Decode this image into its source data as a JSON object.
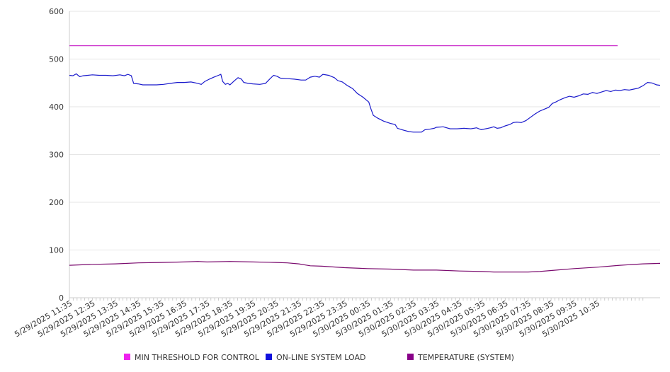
{
  "chart_data": {
    "type": "line",
    "title": "",
    "xlabel": "",
    "ylabel": "",
    "ylim": [
      0,
      600
    ],
    "yticks": [
      0,
      100,
      200,
      300,
      400,
      500,
      600
    ],
    "grid": true,
    "legend_position": "bottom",
    "xticks": [
      "5/29/2025 11:35",
      "5/29/2025 12:35",
      "5/29/2025 13:35",
      "5/29/2025 14:35",
      "5/29/2025 15:35",
      "5/29/2025 16:35",
      "5/29/2025 17:35",
      "5/29/2025 18:35",
      "5/29/2025 19:35",
      "5/29/2025 20:35",
      "5/29/2025 21:35",
      "5/29/2025 22:35",
      "5/29/2025 23:35",
      "5/30/2025 00:35",
      "5/30/2025 01:35",
      "5/30/2025 02:35",
      "5/30/2025 03:35",
      "5/30/2025 04:35",
      "5/30/2025 05:35",
      "5/30/2025 06:35",
      "5/30/2025 07:35",
      "5/30/2025 08:35",
      "5/30/2025 09:35",
      "5/30/2025 10:35"
    ],
    "x_hours_note_free": true,
    "series": [
      {
        "name": "MIN THRESHOLD FOR CONTROL",
        "color": "#cc33cc",
        "legend_color": "#ee22ee",
        "points": [
          [
            0,
            528
          ],
          [
            23.9,
            528
          ]
        ]
      },
      {
        "name": "ON-LINE SYSTEM LOAD",
        "color": "#1a1acc",
        "legend_color": "#1111dd",
        "points": [
          [
            0,
            466
          ],
          [
            0.15,
            465
          ],
          [
            0.3,
            469
          ],
          [
            0.45,
            463
          ],
          [
            0.6,
            465
          ],
          [
            0.8,
            466
          ],
          [
            1.0,
            467
          ],
          [
            1.3,
            466
          ],
          [
            1.6,
            466
          ],
          [
            1.9,
            465
          ],
          [
            2.2,
            467
          ],
          [
            2.4,
            465
          ],
          [
            2.55,
            468
          ],
          [
            2.7,
            465
          ],
          [
            2.8,
            449
          ],
          [
            3.0,
            448
          ],
          [
            3.2,
            446
          ],
          [
            3.5,
            446
          ],
          [
            3.8,
            446
          ],
          [
            4.1,
            447
          ],
          [
            4.4,
            449
          ],
          [
            4.7,
            451
          ],
          [
            5.0,
            451
          ],
          [
            5.3,
            452
          ],
          [
            5.6,
            449
          ],
          [
            5.75,
            447
          ],
          [
            5.9,
            453
          ],
          [
            6.1,
            458
          ],
          [
            6.3,
            462
          ],
          [
            6.5,
            466
          ],
          [
            6.6,
            468
          ],
          [
            6.68,
            453
          ],
          [
            6.8,
            447
          ],
          [
            6.9,
            449
          ],
          [
            7.0,
            446
          ],
          [
            7.2,
            455
          ],
          [
            7.35,
            461
          ],
          [
            7.5,
            458
          ],
          [
            7.6,
            451
          ],
          [
            7.8,
            449
          ],
          [
            8.0,
            448
          ],
          [
            8.3,
            447
          ],
          [
            8.55,
            449
          ],
          [
            8.75,
            459
          ],
          [
            8.9,
            466
          ],
          [
            9.05,
            464
          ],
          [
            9.2,
            460
          ],
          [
            9.5,
            459
          ],
          [
            9.8,
            458
          ],
          [
            10.1,
            456
          ],
          [
            10.3,
            456
          ],
          [
            10.5,
            462
          ],
          [
            10.7,
            464
          ],
          [
            10.9,
            462
          ],
          [
            11.05,
            468
          ],
          [
            11.3,
            466
          ],
          [
            11.55,
            461
          ],
          [
            11.7,
            455
          ],
          [
            11.9,
            452
          ],
          [
            12.1,
            445
          ],
          [
            12.35,
            438
          ],
          [
            12.55,
            428
          ],
          [
            12.8,
            420
          ],
          [
            13.05,
            410
          ],
          [
            13.15,
            395
          ],
          [
            13.25,
            382
          ],
          [
            13.45,
            376
          ],
          [
            13.7,
            370
          ],
          [
            14.0,
            365
          ],
          [
            14.2,
            363
          ],
          [
            14.3,
            355
          ],
          [
            14.5,
            352
          ],
          [
            14.8,
            348
          ],
          [
            15.0,
            347
          ],
          [
            15.35,
            347
          ],
          [
            15.5,
            352
          ],
          [
            15.7,
            353
          ],
          [
            15.9,
            355
          ],
          [
            16.0,
            357
          ],
          [
            16.3,
            358
          ],
          [
            16.6,
            354
          ],
          [
            16.9,
            354
          ],
          [
            17.2,
            355
          ],
          [
            17.5,
            354
          ],
          [
            17.75,
            356
          ],
          [
            17.95,
            352
          ],
          [
            18.15,
            354
          ],
          [
            18.35,
            356
          ],
          [
            18.5,
            358
          ],
          [
            18.65,
            355
          ],
          [
            18.8,
            356
          ],
          [
            19.0,
            360
          ],
          [
            19.2,
            363
          ],
          [
            19.35,
            367
          ],
          [
            19.5,
            368
          ],
          [
            19.7,
            367
          ],
          [
            19.9,
            371
          ],
          [
            20.1,
            378
          ],
          [
            20.3,
            385
          ],
          [
            20.5,
            391
          ],
          [
            20.7,
            395
          ],
          [
            20.9,
            399
          ],
          [
            21.05,
            407
          ],
          [
            21.2,
            410
          ],
          [
            21.4,
            415
          ],
          [
            21.6,
            419
          ],
          [
            21.8,
            422
          ],
          [
            22.0,
            420
          ],
          [
            22.2,
            423
          ],
          [
            22.4,
            427
          ],
          [
            22.6,
            426
          ],
          [
            22.8,
            430
          ],
          [
            23.0,
            428
          ],
          [
            23.2,
            431
          ],
          [
            23.4,
            434
          ],
          [
            23.6,
            432
          ],
          [
            23.8,
            435
          ],
          [
            24.0,
            434
          ],
          [
            24.2,
            436
          ],
          [
            24.4,
            435
          ],
          [
            24.6,
            437
          ],
          [
            24.8,
            439
          ],
          [
            25.0,
            444
          ],
          [
            25.2,
            451
          ],
          [
            25.4,
            450
          ],
          [
            25.6,
            446
          ],
          [
            25.75,
            445
          ]
        ]
      },
      {
        "name": "TEMPERATURE (SYSTEM)",
        "color": "#7a0a6e",
        "legend_color": "#880088",
        "points": [
          [
            0,
            68
          ],
          [
            1.0,
            70
          ],
          [
            2.0,
            71
          ],
          [
            3.0,
            73
          ],
          [
            4.0,
            74
          ],
          [
            5.0,
            75
          ],
          [
            5.6,
            76
          ],
          [
            6.0,
            75
          ],
          [
            7.0,
            76
          ],
          [
            8.0,
            75
          ],
          [
            9.0,
            74
          ],
          [
            9.5,
            73
          ],
          [
            10.0,
            71
          ],
          [
            10.5,
            67
          ],
          [
            11.0,
            66
          ],
          [
            12.0,
            63
          ],
          [
            13.0,
            61
          ],
          [
            14.0,
            60
          ],
          [
            15.0,
            58
          ],
          [
            16.0,
            58
          ],
          [
            17.0,
            56
          ],
          [
            18.0,
            55
          ],
          [
            18.5,
            54
          ],
          [
            19.0,
            54
          ],
          [
            20.0,
            54
          ],
          [
            20.5,
            55
          ],
          [
            21.0,
            57
          ],
          [
            22.0,
            61
          ],
          [
            23.0,
            64
          ],
          [
            24.0,
            68
          ],
          [
            25.0,
            71
          ],
          [
            25.75,
            72
          ]
        ]
      }
    ]
  },
  "legend": [
    {
      "label": "MIN THRESHOLD FOR CONTROL",
      "color": "#ee22ee"
    },
    {
      "label": "ON-LINE SYSTEM LOAD",
      "color": "#1111dd"
    },
    {
      "label": "TEMPERATURE (SYSTEM)",
      "color": "#880088"
    }
  ]
}
